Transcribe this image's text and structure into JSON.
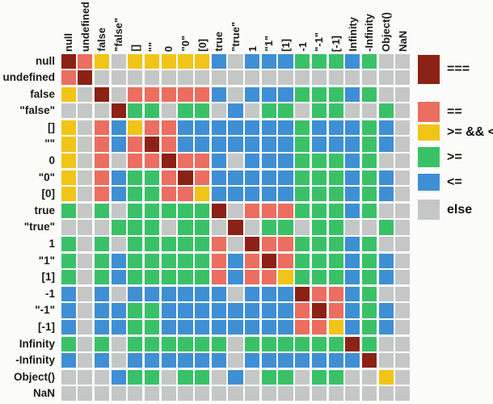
{
  "chart_data": {
    "type": "heatmap",
    "columns": [
      "null",
      "undefined",
      "false",
      "\"false\"",
      "[]",
      "\"\"",
      "0",
      "\"0\"",
      "[0]",
      "true",
      "\"true\"",
      "1",
      "\"1\"",
      "[1]",
      "-1",
      "\"-1\"",
      "[-1]",
      "Infinity",
      "-Infinity",
      "Object()",
      "NaN"
    ],
    "rows": [
      "null",
      "undefined",
      "false",
      "\"false\"",
      "[]",
      "\"\"",
      "0",
      "\"0\"",
      "[0]",
      "true",
      "\"true\"",
      "1",
      "\"1\"",
      "[1]",
      "-1",
      "\"-1\"",
      "[-1]",
      "Infinity",
      "-Infinity",
      "Object()",
      "NaN"
    ],
    "matrix": [
      "EQYXYYYYYBXBBBGGGBGXX",
      "QEXXXXXXXXXXXXXXXXXXX",
      "YXEXQQQQQBXBBBGGGBGXX",
      "XXXEGGXGGXBXGGXGGXXGX",
      "YXQBYQQBBBBBBBGBBBGBX",
      "YXQBQEQBBBBBBBGBBBGBX",
      "YXQXQQEQQBXBBBGGGBGXX",
      "YXQBGGQEQBBBBBGGGBGBX",
      "YXQBGGQQYBBBBBGGGBGBX",
      "GXGXGGGGGEXQQQGGGBGXX",
      "XXXGGGXGGXEXGGXGGXXGX",
      "GXGXGGGGGQXEQQGGGBGXX",
      "GXGBGGGGGQBQEQGGGBGBX",
      "GXGBGGGGGQBQQYGGGBGBX",
      "BXBXBBBBBBXBBBEQQBGXX",
      "BXBBGGBBBBBBBBQEQBGBX",
      "BXBBGGBBBBBBBBQQYBGBX",
      "GXGXGGGGGGXGGGGGGEGXX",
      "BXBXBBBBBBXBBBBBBBEXX",
      "XXXBGGXGGXBXGGXGGXXYX",
      "XXXXXXXXXXXXXXXXXXXXX"
    ],
    "legend": [
      {
        "code": "E",
        "label": "===",
        "color": "#8c2115"
      },
      {
        "code": "Q",
        "label": "==",
        "color": "#eb6e60"
      },
      {
        "code": "Y",
        "label": ">= && <=",
        "color": "#f1c418"
      },
      {
        "code": "G",
        "label": ">=",
        "color": "#3ac168"
      },
      {
        "code": "B",
        "label": "<=",
        "color": "#3f8fd4"
      },
      {
        "code": "X",
        "label": "else",
        "color": "#c5c7c7"
      }
    ]
  }
}
